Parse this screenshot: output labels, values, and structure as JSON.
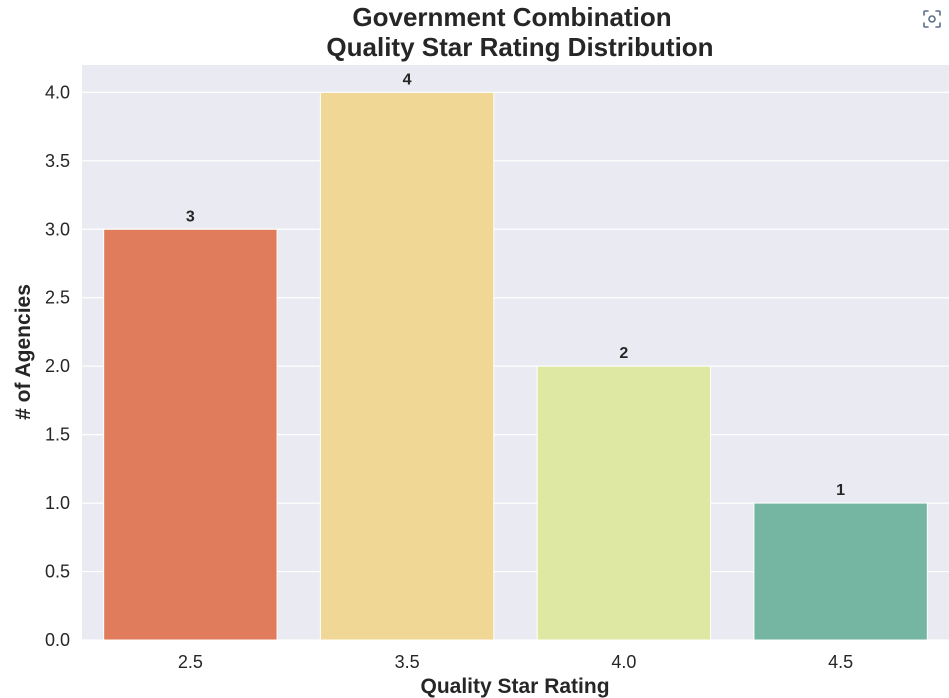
{
  "chart_data": {
    "type": "bar",
    "title": [
      "Government Combination",
      "Quality Star Rating Distribution"
    ],
    "xlabel": "Quality Star Rating",
    "ylabel": "# of Agencies",
    "categories": [
      "2.5",
      "3.5",
      "4.0",
      "4.5"
    ],
    "values": [
      3,
      4,
      2,
      1
    ],
    "data_labels": [
      "3",
      "4",
      "2",
      "1"
    ],
    "colors": [
      "#e07b5b",
      "#f0d795",
      "#dee8a2",
      "#74b6a2"
    ],
    "ylim": [
      0,
      4.2
    ],
    "yticks": [
      0.0,
      0.5,
      1.0,
      1.5,
      2.0,
      2.5,
      3.0,
      3.5,
      4.0
    ],
    "ytick_labels": [
      "0.0",
      "0.5",
      "1.0",
      "1.5",
      "2.0",
      "2.5",
      "3.0",
      "3.5",
      "4.0"
    ],
    "grid": true,
    "background": "#eaeaf2"
  },
  "toolbar": {
    "corner_icon": "screenshot-scan-icon"
  }
}
